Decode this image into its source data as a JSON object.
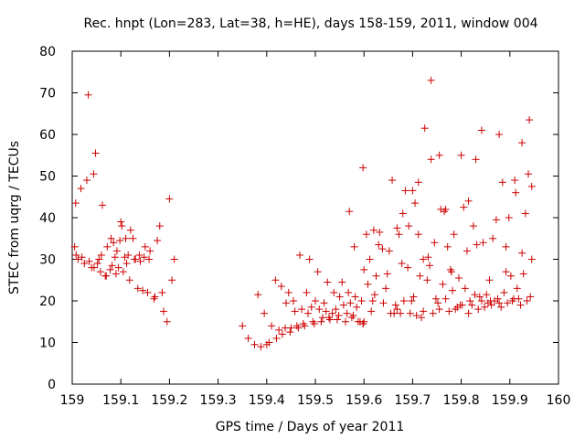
{
  "chart_data": {
    "type": "scatter",
    "title": "Rec. hnpt (Lon=283, Lat=38, h=HE), days 158-159, 2011, window 004",
    "xlabel": "GPS time / Days of year 2011",
    "ylabel": "STEC from uqrg / TECUs",
    "xlim": [
      159,
      160
    ],
    "ylim": [
      0,
      80
    ],
    "xticks": [
      "159",
      "159.1",
      "159.2",
      "159.3",
      "159.4",
      "159.5",
      "159.6",
      "159.7",
      "159.8",
      "159.9",
      "160"
    ],
    "yticks": [
      "0",
      "10",
      "20",
      "30",
      "40",
      "50",
      "60",
      "70",
      "80"
    ],
    "grid": false,
    "marker": "+",
    "color": "#cc0000",
    "series": [
      {
        "x": [
          159.005,
          159.007,
          159.012,
          159.018,
          159.025,
          159.03,
          159.033,
          159.04,
          159.044,
          159.048,
          159.055,
          159.058,
          159.062,
          159.068,
          159.072,
          159.078,
          159.08,
          159.085,
          159.088,
          159.092,
          159.095,
          159.1,
          159.102,
          159.105,
          159.11,
          159.112,
          159.118,
          159.12,
          159.125,
          159.13,
          159.135,
          159.14,
          159.145,
          159.15,
          159.155,
          159.16,
          159.168,
          159.175,
          159.18,
          159.188,
          159.195,
          159.2,
          159.205,
          159.21,
          159.008,
          159.02,
          159.035,
          159.045,
          159.052,
          159.06,
          159.07,
          159.082,
          159.09,
          159.098,
          159.108,
          159.115,
          159.128,
          159.138,
          159.148,
          159.158,
          159.17,
          159.185,
          159.35,
          159.362,
          159.375,
          159.382,
          159.388,
          159.395,
          159.4,
          159.405,
          159.41,
          159.418,
          159.425,
          159.43,
          159.438,
          159.445,
          159.45,
          159.455,
          159.462,
          159.468,
          159.475,
          159.482,
          159.488,
          159.495,
          159.5,
          159.505,
          159.512,
          159.518,
          159.525,
          159.53,
          159.538,
          159.545,
          159.55,
          159.555,
          159.562,
          159.568,
          159.575,
          159.582,
          159.588,
          159.595,
          159.6,
          159.42,
          159.432,
          159.44,
          159.448,
          159.458,
          159.465,
          159.472,
          159.478,
          159.485,
          159.492,
          159.498,
          159.508,
          159.515,
          159.522,
          159.528,
          159.535,
          159.542,
          159.548,
          159.558,
          159.565,
          159.572,
          159.578,
          159.585,
          159.592,
          159.598,
          159.6,
          159.605,
          159.612,
          159.618,
          159.625,
          159.632,
          159.638,
          159.645,
          159.652,
          159.658,
          159.665,
          159.672,
          159.678,
          159.685,
          159.692,
          159.698,
          159.705,
          159.712,
          159.718,
          159.725,
          159.732,
          159.738,
          159.745,
          159.752,
          159.758,
          159.765,
          159.772,
          159.778,
          159.785,
          159.792,
          159.798,
          159.805,
          159.812,
          159.818,
          159.825,
          159.832,
          159.838,
          159.845,
          159.852,
          159.858,
          159.865,
          159.872,
          159.878,
          159.885,
          159.892,
          159.898,
          159.905,
          159.912,
          159.918,
          159.925,
          159.932,
          159.938,
          159.945,
          159.598,
          159.608,
          159.615,
          159.622,
          159.63,
          159.64,
          159.648,
          159.655,
          159.662,
          159.668,
          159.675,
          159.682,
          159.69,
          159.695,
          159.702,
          159.708,
          159.715,
          159.722,
          159.73,
          159.735,
          159.742,
          159.748,
          159.755,
          159.762,
          159.768,
          159.775,
          159.782,
          159.788,
          159.795,
          159.802,
          159.808,
          159.815,
          159.822,
          159.828,
          159.835,
          159.842,
          159.848,
          159.855,
          159.862,
          159.868,
          159.875,
          159.882,
          159.888,
          159.895,
          159.902,
          159.908,
          159.915,
          159.922,
          159.928,
          159.935,
          159.942,
          159.57,
          159.58,
          159.598,
          159.62,
          159.668,
          159.68,
          159.7,
          159.712,
          159.722,
          159.738,
          159.755,
          159.768,
          159.78,
          159.8,
          159.815,
          159.83,
          159.842,
          159.86,
          159.878,
          159.892,
          159.91,
          159.925,
          159.94,
          159.945
        ],
        "y": [
          33.0,
          43.5,
          30.0,
          47.0,
          29.0,
          49.0,
          69.5,
          28.0,
          50.5,
          55.5,
          30.0,
          27.0,
          43.0,
          26.0,
          33.0,
          27.5,
          35.0,
          34.0,
          30.5,
          32.0,
          28.0,
          39.0,
          38.0,
          27.0,
          35.0,
          29.0,
          25.0,
          37.0,
          35.0,
          30.0,
          23.0,
          29.5,
          22.5,
          33.0,
          22.0,
          32.0,
          20.5,
          34.5,
          38.0,
          17.5,
          15.0,
          44.5,
          25.0,
          30.0,
          31.0,
          30.5,
          29.5,
          28.0,
          29.0,
          31.0,
          26.0,
          28.5,
          26.5,
          34.5,
          30.5,
          31.0,
          30.0,
          31.0,
          30.5,
          30.0,
          21.0,
          22.0,
          14.0,
          11.0,
          9.5,
          21.5,
          9.0,
          17.0,
          9.5,
          10.0,
          14.0,
          25.0,
          13.0,
          23.5,
          13.5,
          22.0,
          13.5,
          20.0,
          14.0,
          31.0,
          14.5,
          22.0,
          30.0,
          15.0,
          20.0,
          27.0,
          15.0,
          19.5,
          24.5,
          15.5,
          22.0,
          15.5,
          21.0,
          24.5,
          15.0,
          22.0,
          16.0,
          21.0,
          15.0,
          20.0,
          15.0,
          11.0,
          12.0,
          19.5,
          12.5,
          17.5,
          13.5,
          18.0,
          14.0,
          17.0,
          18.5,
          14.5,
          18.0,
          16.0,
          17.5,
          16.0,
          17.0,
          18.0,
          16.5,
          19.0,
          17.0,
          19.5,
          16.5,
          18.5,
          15.0,
          14.5,
          27.5,
          36.0,
          30.0,
          20.0,
          26.0,
          36.5,
          32.5,
          23.0,
          32.0,
          49.0,
          19.0,
          36.0,
          29.0,
          46.5,
          38.0,
          20.0,
          43.5,
          36.0,
          16.0,
          61.5,
          30.5,
          73.0,
          34.0,
          19.5,
          42.0,
          41.5,
          33.0,
          27.5,
          36.0,
          18.5,
          19.0,
          42.5,
          32.0,
          20.0,
          38.0,
          33.5,
          21.0,
          34.0,
          21.5,
          25.0,
          35.0,
          39.5,
          19.5,
          48.5,
          27.0,
          40.0,
          20.0,
          46.0,
          20.5,
          31.5,
          41.0,
          50.5,
          30.0,
          14.5,
          24.0,
          17.5,
          21.5,
          33.5,
          19.5,
          26.5,
          17.0,
          17.0,
          18.0,
          17.0,
          20.0,
          28.0,
          17.0,
          21.0,
          16.5,
          26.0,
          17.5,
          25.0,
          28.5,
          17.0,
          20.5,
          18.0,
          24.0,
          20.5,
          17.5,
          22.5,
          18.0,
          25.5,
          19.0,
          23.0,
          17.0,
          19.0,
          21.5,
          18.0,
          20.0,
          18.5,
          19.5,
          19.0,
          20.0,
          20.5,
          18.5,
          22.0,
          19.5,
          26.0,
          20.5,
          23.0,
          19.0,
          26.5,
          20.0,
          21.0,
          41.5,
          33.0,
          52.0,
          37.0,
          37.5,
          41.0,
          46.5,
          48.5,
          30.0,
          54.0,
          55.0,
          42.0,
          27.0,
          55.0,
          44.0,
          54.0,
          61.0,
          20.0,
          60.0,
          33.0,
          49.0,
          58.0,
          63.5,
          47.5
        ]
      }
    ]
  }
}
